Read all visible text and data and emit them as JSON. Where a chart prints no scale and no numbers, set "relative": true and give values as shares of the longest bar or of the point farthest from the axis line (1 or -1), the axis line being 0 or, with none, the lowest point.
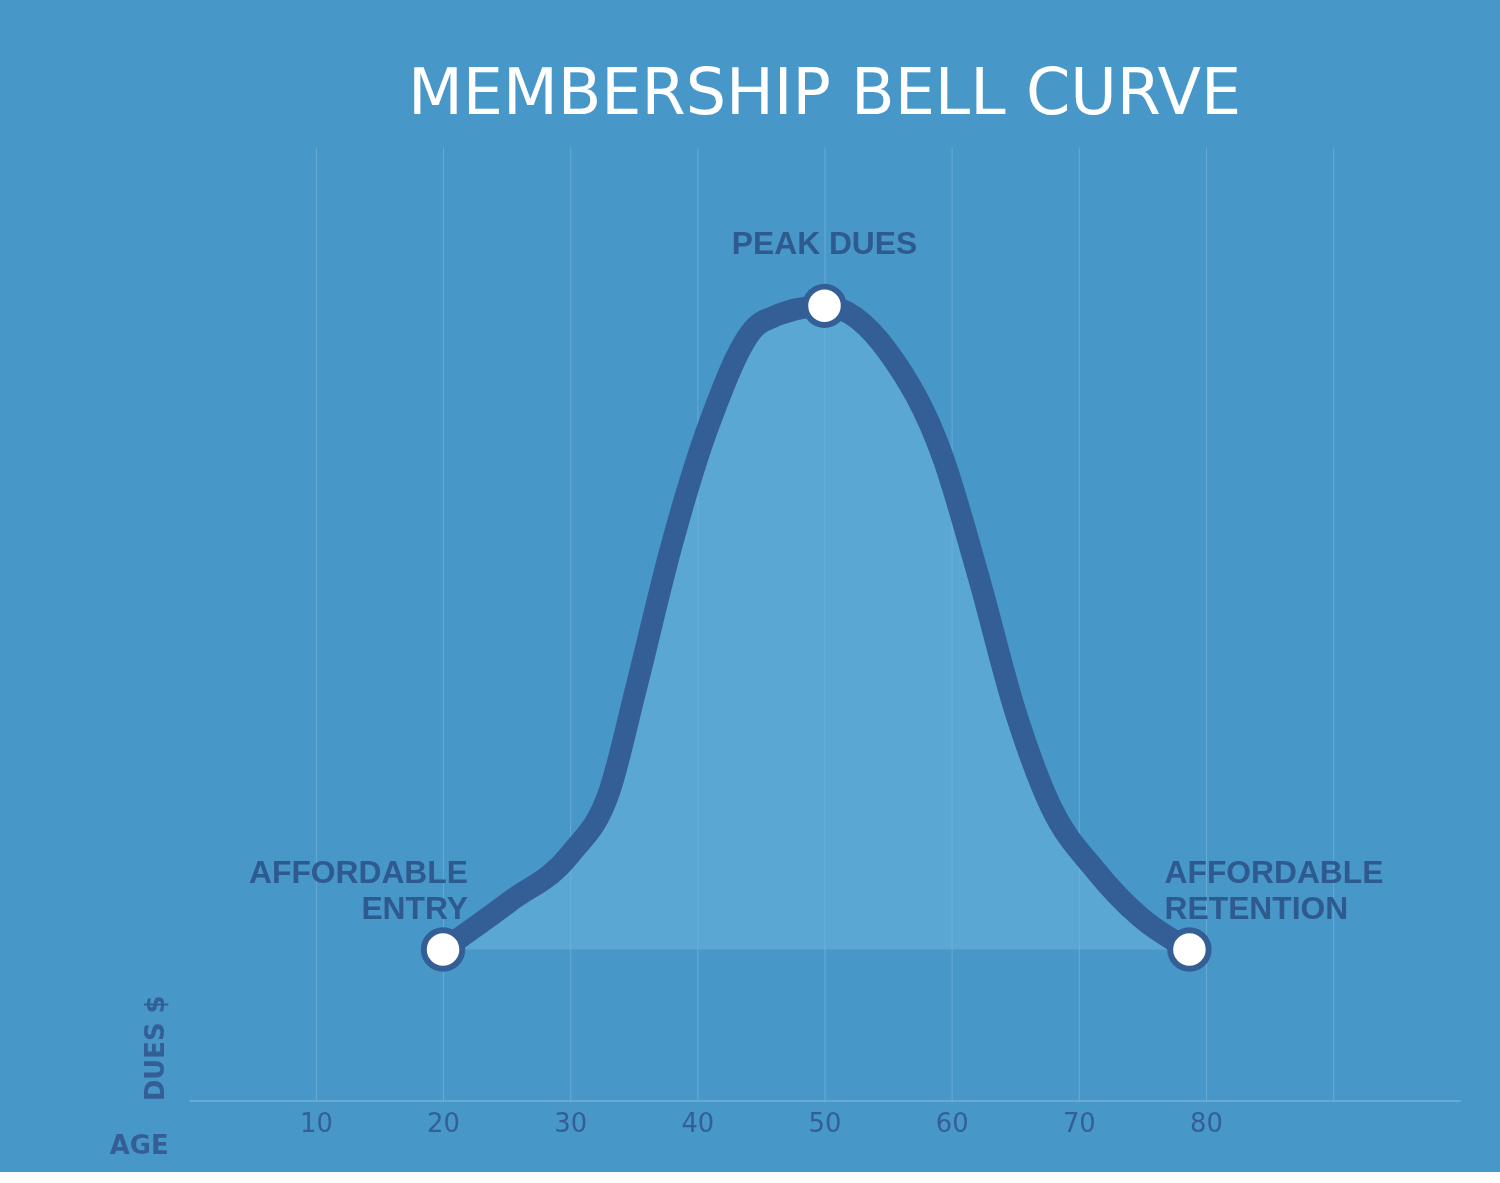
{
  "chart_data": {
    "type": "area",
    "title": "MEMBERSHIP BELL CURVE",
    "xlabel": "AGE",
    "ylabel": "DUES $",
    "relative": true,
    "x": [
      20,
      25.2,
      30,
      33.1,
      35.2,
      38,
      40.9,
      45.1,
      50,
      55.1,
      59.3,
      62.1,
      65,
      67.8,
      71.3,
      74.9,
      78.7
    ],
    "series": [
      {
        "color": "#345f96",
        "values": [
          0.19,
          0.25,
          0.31,
          0.39,
          0.52,
          0.7,
          0.85,
          0.98,
          1,
          0.94,
          0.81,
          0.66,
          0.49,
          0.37,
          0.29,
          0.23,
          0.19
        ]
      }
    ],
    "xlim": [
      0,
      100
    ],
    "xticks": [
      10,
      20,
      30,
      40,
      50,
      60,
      70,
      80,
      {
        "value": 90,
        "label": null
      }
    ],
    "grid": "x",
    "annotations": [
      {
        "text": "AFFORDABLE\nENTRY",
        "x": 20,
        "y": 0.19
      },
      {
        "text": "PEAK DUES",
        "x": 50,
        "y": 1
      },
      {
        "text": "AFFORDABLE\nRETENTION",
        "x": 78.7,
        "y": 0.19
      }
    ]
  }
}
